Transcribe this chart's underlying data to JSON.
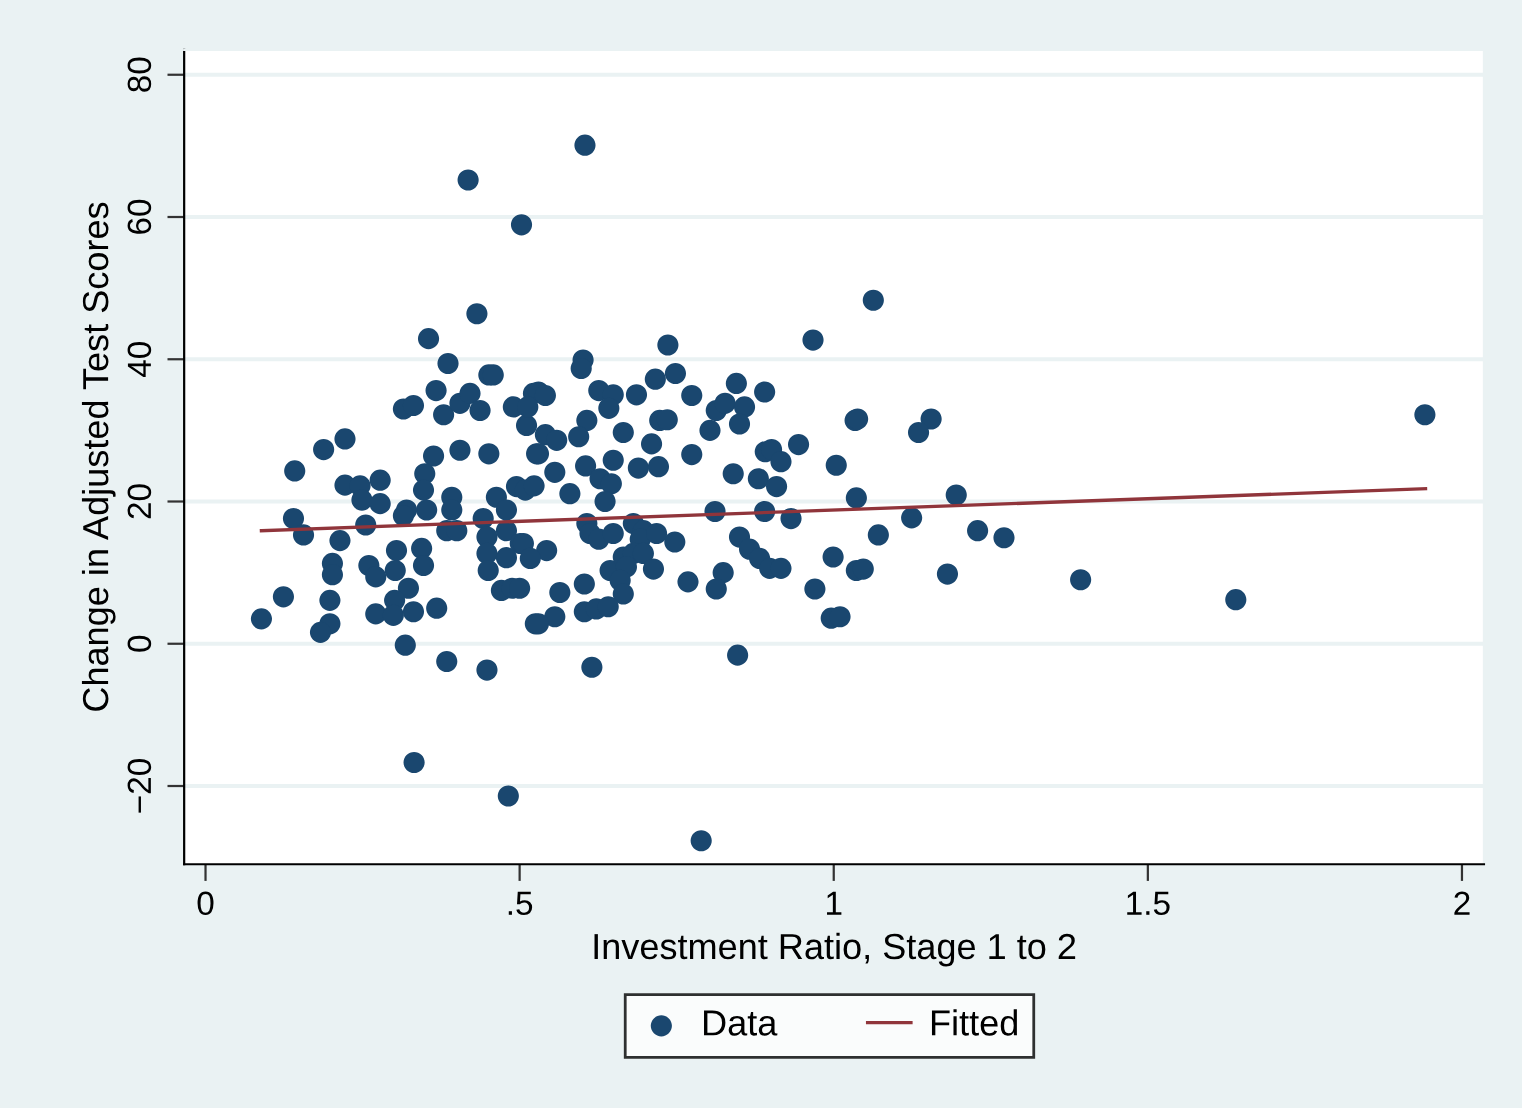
{
  "chart_data": {
    "type": "scatter",
    "xlabel": "Investment Ratio, Stage 1 to 2",
    "ylabel": "Change in Adjusted Test Scores",
    "xlim": [
      -0.034,
      2.035
    ],
    "ylim": [
      -31,
      83.5
    ],
    "xticks": [
      0,
      {
        "value": 0.5,
        "label": ".5"
      },
      1,
      {
        "value": 1.5,
        "label": "1.5"
      },
      2
    ],
    "yticks": [
      {
        "value": -20,
        "label": "−20"
      },
      0,
      20,
      40,
      60,
      80
    ],
    "grid": "y",
    "legend": "bottom",
    "marker": "circle",
    "series": [
      {
        "name": "Data",
        "color": "#1a476f",
        "x": [
          0.432,
          0.355,
          0.386,
          0.367,
          0.451,
          0.458,
          0.315,
          0.331,
          0.379,
          0.405,
          0.421,
          0.437,
          0.49,
          0.511,
          0.522,
          0.527,
          0.222,
          0.188,
          0.142,
          0.222,
          0.246,
          0.249,
          0.278,
          0.278,
          0.363,
          0.349,
          0.405,
          0.451,
          0.347,
          0.352,
          0.32,
          0.392,
          0.392,
          0.14,
          0.156,
          0.214,
          0.255,
          0.315,
          0.384,
          0.4,
          0.442,
          0.463,
          0.479,
          0.495,
          0.448,
          0.479,
          0.501,
          0.448,
          0.479,
          0.45,
          0.202,
          0.202,
          0.26,
          0.271,
          0.304,
          0.302,
          0.344,
          0.347,
          0.323,
          0.301,
          0.271,
          0.299,
          0.331,
          0.368,
          0.198,
          0.198,
          0.183,
          0.124,
          0.089,
          0.471,
          0.488,
          0.5,
          0.525,
          0.318,
          0.384,
          0.448,
          0.332,
          0.482,
          0.789,
          0.418,
          0.503,
          0.604,
          0.736,
          0.967,
          0.601,
          0.598,
          0.53,
          0.541,
          0.626,
          0.649,
          0.686,
          0.716,
          0.748,
          0.774,
          0.845,
          0.89,
          0.513,
          0.642,
          0.607,
          0.723,
          0.735,
          0.813,
          0.827,
          0.858,
          0.85,
          0.803,
          1.034,
          0.541,
          0.559,
          0.594,
          0.665,
          0.53,
          0.649,
          0.605,
          0.689,
          0.721,
          0.71,
          0.774,
          0.891,
          0.901,
          0.916,
          0.944,
          1.004,
          0.84,
          0.88,
          0.909,
          0.556,
          0.628,
          0.646,
          0.509,
          0.523,
          0.58,
          0.636,
          1.036,
          0.811,
          0.89,
          0.932,
          0.607,
          0.612,
          0.626,
          0.649,
          0.681,
          0.697,
          0.692,
          0.718,
          0.747,
          0.506,
          0.543,
          0.517,
          0.85,
          0.866,
          0.882,
          0.898,
          0.916,
          0.999,
          1.036,
          0.644,
          0.665,
          0.681,
          0.697,
          0.67,
          0.66,
          0.713,
          0.824,
          0.768,
          0.813,
          0.665,
          0.564,
          0.603,
          0.603,
          0.622,
          0.641,
          0.556,
          0.53,
          0.97,
          0.996,
          0.615,
          0.847,
          1.063,
          1.038,
          1.155,
          1.135,
          1.195,
          1.124,
          1.071,
          1.229,
          1.271,
          1.047,
          1.181,
          1.393,
          1.64,
          1.941,
          1.01
        ],
        "values": [
          46.4,
          42.9,
          39.4,
          35.6,
          37.8,
          37.8,
          33.0,
          33.5,
          32.2,
          33.8,
          35.2,
          32.8,
          33.3,
          30.7,
          35.2,
          26.7,
          28.8,
          27.3,
          24.3,
          22.3,
          22.2,
          20.2,
          23.0,
          19.7,
          26.4,
          23.9,
          27.2,
          26.7,
          21.6,
          18.8,
          18.8,
          20.6,
          18.8,
          17.6,
          15.3,
          14.5,
          16.7,
          18.0,
          15.9,
          15.9,
          17.6,
          20.6,
          18.8,
          22.1,
          15.0,
          15.9,
          14.1,
          12.7,
          12.1,
          10.3,
          11.3,
          9.7,
          11.0,
          9.4,
          13.1,
          10.3,
          13.4,
          11.0,
          7.8,
          6.1,
          4.2,
          4.0,
          4.5,
          5.0,
          6.1,
          2.8,
          1.6,
          6.6,
          3.5,
          7.5,
          7.8,
          7.8,
          2.8,
          -0.2,
          -2.5,
          -3.7,
          -16.7,
          -21.4,
          -27.7,
          65.2,
          58.9,
          70.1,
          42.0,
          42.7,
          39.9,
          38.7,
          35.4,
          34.9,
          35.6,
          35.0,
          35.0,
          37.2,
          38.0,
          34.9,
          36.6,
          35.4,
          33.3,
          33.1,
          31.4,
          31.4,
          31.5,
          32.8,
          33.8,
          33.3,
          30.9,
          30.0,
          31.4,
          29.4,
          28.6,
          29.1,
          29.7,
          26.7,
          25.8,
          25.0,
          24.7,
          24.9,
          28.1,
          26.6,
          27.0,
          27.3,
          25.6,
          28.0,
          25.1,
          23.9,
          23.2,
          22.1,
          24.1,
          23.2,
          22.5,
          21.6,
          22.2,
          21.1,
          20.0,
          20.5,
          18.6,
          18.6,
          17.6,
          16.9,
          15.5,
          14.7,
          15.5,
          16.9,
          15.9,
          14.7,
          15.5,
          14.3,
          14.1,
          13.1,
          12.0,
          15.0,
          13.3,
          12.0,
          10.6,
          10.6,
          12.2,
          10.3,
          10.3,
          12.2,
          12.7,
          12.7,
          10.8,
          8.9,
          10.5,
          10.0,
          8.7,
          7.7,
          7.0,
          7.2,
          8.4,
          4.5,
          4.9,
          5.2,
          3.8,
          2.8,
          7.7,
          3.6,
          -3.3,
          -1.6,
          48.3,
          31.6,
          31.6,
          29.7,
          20.9,
          17.7,
          15.3,
          15.9,
          14.9,
          10.5,
          9.8,
          9.0,
          6.2,
          32.2,
          3.8
        ]
      },
      {
        "name": "Fitted",
        "type": "line",
        "color": "#90353b",
        "marker": "none",
        "line_style": "solid",
        "x": [
          0.089,
          1.942
        ],
        "values": [
          15.9,
          21.8
        ]
      }
    ]
  }
}
